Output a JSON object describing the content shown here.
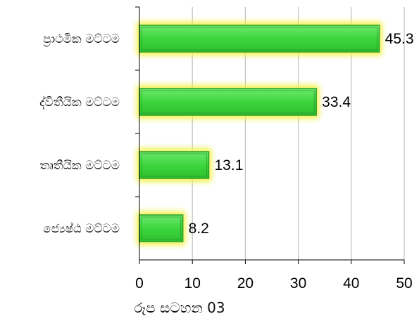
{
  "chart_data": {
    "type": "bar",
    "orientation": "horizontal",
    "categories": [
      "ප්‍රාථමික මට්ටම",
      "ද්විතීයික මට්ටම",
      "තෘතීයික මට්ටම",
      "ජ්‍යෙෂ්ඨ මට්ටම"
    ],
    "values": [
      45.3,
      33.4,
      13.1,
      8.2
    ],
    "data_labels": [
      "45.3",
      "33.4",
      "13.1",
      "8.2"
    ],
    "xlim": [
      0,
      50
    ],
    "x_ticks": [
      "0",
      "10",
      "20",
      "30",
      "40",
      "50"
    ],
    "grid": "vertical",
    "legend": "none",
    "caption": "රූප සටහන 03",
    "colors": {
      "bar_fill": "#3dd63d",
      "bar_edge": "#2a9d2a",
      "bar_glow": "#f2f23a",
      "gridline": "#bfbfbf",
      "axis": "#000000"
    }
  }
}
